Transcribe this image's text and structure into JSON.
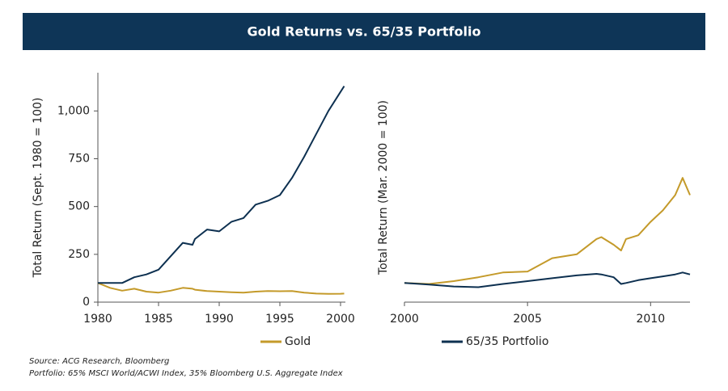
{
  "title": "Gold Returns vs. 65/35 Portfolio",
  "source_notes": [
    "Source: ACG Research, Bloomberg",
    "Portfolio: 65% MSCI World/ACWI Index, 35% Bloomberg U.S. Aggregate Index"
  ],
  "chart_data": [
    {
      "type": "line",
      "y_label": "Total Return (Sept. 1980 = 100)",
      "x": [
        1980,
        1981,
        1982,
        1983,
        1984,
        1985,
        1986,
        1987,
        1987.8,
        1988,
        1989,
        1990,
        1991,
        1992,
        1993,
        1994,
        1995,
        1996,
        1997,
        1998,
        1999,
        2000,
        2000.3
      ],
      "series": [
        {
          "name": "Gold",
          "color": "#c49a2a",
          "values": [
            100,
            75,
            60,
            70,
            55,
            50,
            60,
            75,
            70,
            65,
            58,
            55,
            52,
            50,
            55,
            58,
            57,
            58,
            50,
            45,
            43,
            44,
            45
          ]
        },
        {
          "name": "65/35 Portfolio",
          "color": "#0d3050",
          "values": [
            100,
            100,
            100,
            130,
            145,
            170,
            240,
            310,
            300,
            330,
            380,
            370,
            420,
            440,
            510,
            530,
            560,
            650,
            760,
            880,
            1000,
            1100,
            1130
          ]
        }
      ],
      "xlim": [
        1980,
        2000.4
      ],
      "xticks": [
        1980,
        1985,
        1990,
        1995,
        2000
      ],
      "ylim": [
        0,
        1200
      ],
      "yticks": [
        0,
        250,
        500,
        750,
        {
          "value": 1000,
          "label": "1,000"
        }
      ]
    },
    {
      "type": "line",
      "y_label": "Total Return (Mar. 2000 = 100)",
      "x": [
        2000,
        2001,
        2002,
        2003,
        2004,
        2005,
        2006,
        2007,
        2007.8,
        2008,
        2008.5,
        2008.8,
        2009,
        2009.5,
        2010,
        2010.5,
        2011,
        2011.3,
        2011.6
      ],
      "series": [
        {
          "color": "#c49a2a",
          "values": [
            100,
            95,
            110,
            130,
            155,
            160,
            230,
            250,
            330,
            340,
            300,
            270,
            330,
            350,
            420,
            480,
            560,
            650,
            560
          ]
        },
        {
          "color": "#0d3050",
          "values": [
            100,
            92,
            82,
            78,
            95,
            110,
            125,
            140,
            148,
            145,
            130,
            95,
            100,
            115,
            125,
            135,
            145,
            155,
            145
          ]
        }
      ],
      "xlim": [
        2000,
        2011.6
      ],
      "xticks": [
        2000,
        2005,
        2010
      ],
      "ylim": [
        0,
        1200
      ]
    }
  ]
}
